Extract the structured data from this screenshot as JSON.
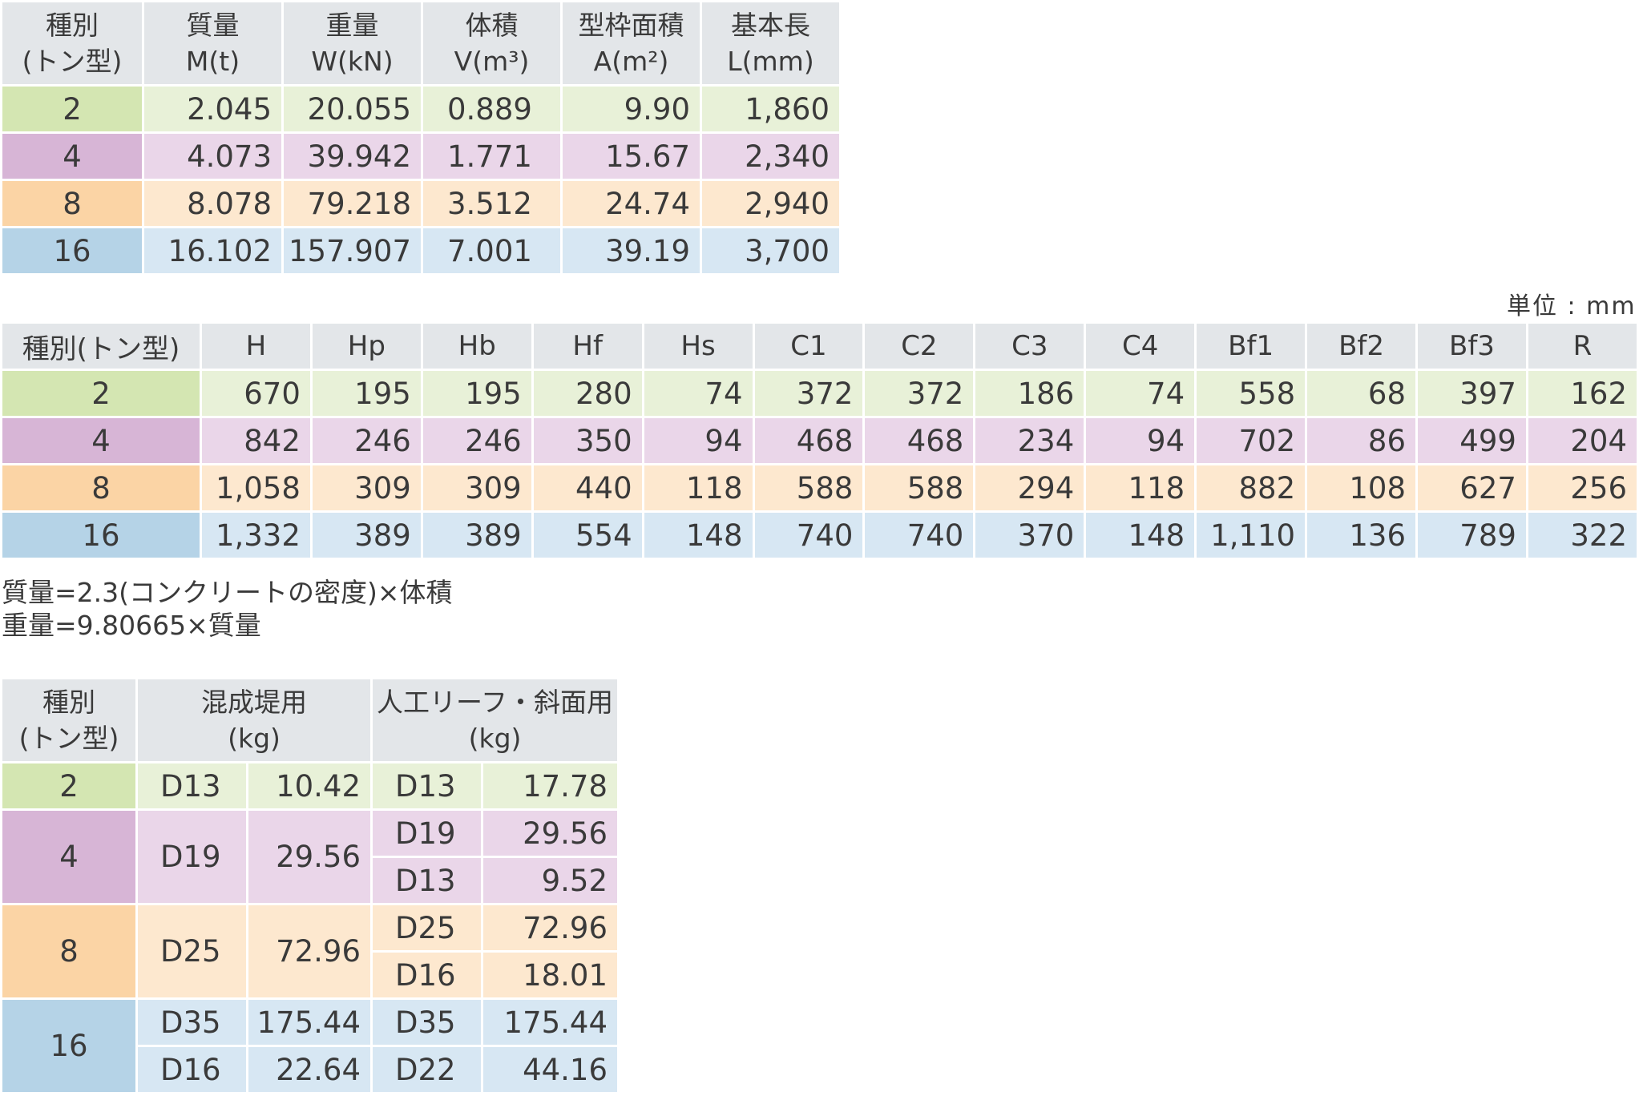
{
  "table1": {
    "headers": [
      [
        "種別",
        "(トン型)"
      ],
      [
        "質量",
        "M(t)"
      ],
      [
        "重量",
        "W(kN)"
      ],
      [
        "体積",
        "V(m³)"
      ],
      [
        "型枠面積",
        "A(m²)"
      ],
      [
        "基本長",
        "L(mm)"
      ]
    ],
    "rows": [
      [
        "2",
        "2.045",
        "20.055",
        "0.889",
        "9.90",
        "1,860"
      ],
      [
        "4",
        "4.073",
        "39.942",
        "1.771",
        "15.67",
        "2,340"
      ],
      [
        "8",
        "8.078",
        "79.218",
        "3.512",
        "24.74",
        "2,940"
      ],
      [
        "16",
        "16.102",
        "157.907",
        "7.001",
        "39.19",
        "3,700"
      ]
    ]
  },
  "unit_label": "単位 : mm",
  "table2": {
    "headers": [
      "種別(トン型)",
      "H",
      "Hp",
      "Hb",
      "Hf",
      "Hs",
      "C1",
      "C2",
      "C3",
      "C4",
      "Bf1",
      "Bf2",
      "Bf3",
      "R"
    ],
    "rows": [
      [
        "2",
        "670",
        "195",
        "195",
        "280",
        "74",
        "372",
        "372",
        "186",
        "74",
        "558",
        "68",
        "397",
        "162"
      ],
      [
        "4",
        "842",
        "246",
        "246",
        "350",
        "94",
        "468",
        "468",
        "234",
        "94",
        "702",
        "86",
        "499",
        "204"
      ],
      [
        "8",
        "1,058",
        "309",
        "309",
        "440",
        "118",
        "588",
        "588",
        "294",
        "118",
        "882",
        "108",
        "627",
        "256"
      ],
      [
        "16",
        "1,332",
        "389",
        "389",
        "554",
        "148",
        "740",
        "740",
        "370",
        "148",
        "1,110",
        "136",
        "789",
        "322"
      ]
    ]
  },
  "notes": [
    "質量=2.3(コンクリートの密度)×体積",
    "重量=9.80665×質量"
  ],
  "table3": {
    "headers": [
      [
        "種別",
        "(トン型)"
      ],
      [
        "混成堤用",
        "(kg)"
      ],
      [
        "人工リーフ・斜面用",
        "(kg)"
      ]
    ],
    "groups": [
      {
        "type": "2",
        "left": [
          [
            "D13",
            "10.42"
          ]
        ],
        "right": [
          [
            "D13",
            "17.78"
          ]
        ]
      },
      {
        "type": "4",
        "left": [
          [
            "D19",
            "29.56"
          ]
        ],
        "right": [
          [
            "D19",
            "29.56"
          ],
          [
            "D13",
            "9.52"
          ]
        ]
      },
      {
        "type": "8",
        "left": [
          [
            "D25",
            "72.96"
          ]
        ],
        "right": [
          [
            "D25",
            "72.96"
          ],
          [
            "D16",
            "18.01"
          ]
        ]
      },
      {
        "type": "16",
        "left": [
          [
            "D35",
            "175.44"
          ],
          [
            "D16",
            "22.64"
          ]
        ],
        "right": [
          [
            "D35",
            "175.44"
          ],
          [
            "D22",
            "44.16"
          ]
        ]
      }
    ]
  }
}
